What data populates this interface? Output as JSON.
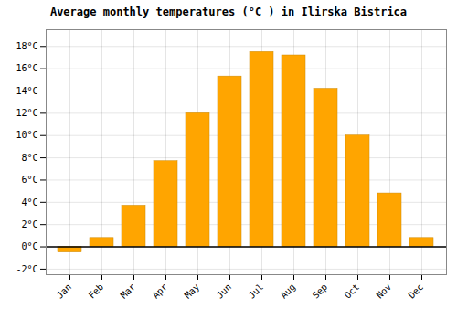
{
  "chart_data": {
    "type": "bar",
    "title": "Average monthly temperatures (°C ) in Ilirska Bistrica",
    "categories": [
      "Jan",
      "Feb",
      "Mar",
      "Apr",
      "May",
      "Jun",
      "Jul",
      "Aug",
      "Sep",
      "Oct",
      "Nov",
      "Dec"
    ],
    "values": [
      -0.5,
      0.8,
      3.7,
      7.7,
      12.0,
      15.3,
      17.5,
      17.2,
      14.2,
      10.0,
      4.8,
      0.8
    ],
    "color": "#FFA500",
    "ylim": [
      -2.5,
      19.5
    ],
    "yticks": [
      {
        "value": -2,
        "label": "-2°C"
      },
      {
        "value": 0,
        "label": "0°C"
      },
      {
        "value": 2,
        "label": "2°C"
      },
      {
        "value": 4,
        "label": "4°C"
      },
      {
        "value": 6,
        "label": "6°C"
      },
      {
        "value": 8,
        "label": "8°C"
      },
      {
        "value": 10,
        "label": "10°C"
      },
      {
        "value": 12,
        "label": "12°C"
      },
      {
        "value": 14,
        "label": "14°C"
      },
      {
        "value": 16,
        "label": "16°C"
      },
      {
        "value": 18,
        "label": "18°C"
      }
    ],
    "grid": true
  }
}
